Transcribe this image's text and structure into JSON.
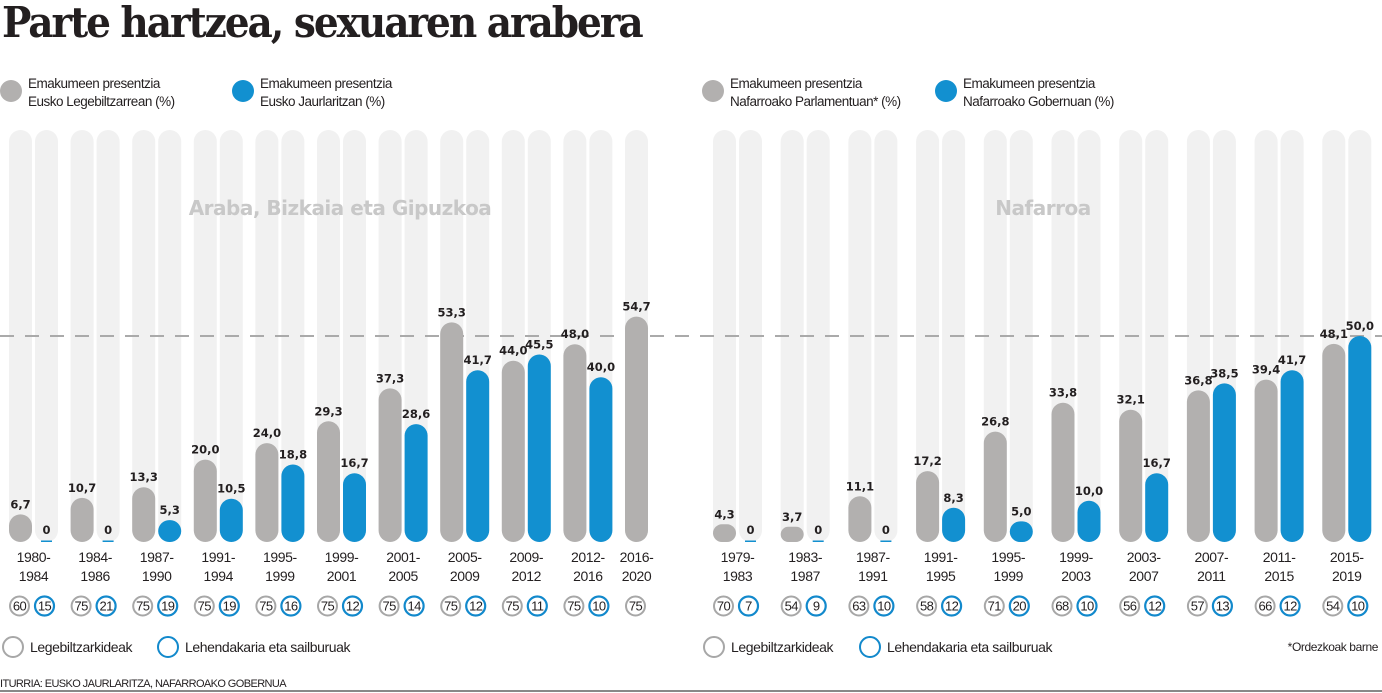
{
  "title": "Parte hartzea, sexuaren arabera",
  "legend": {
    "left": [
      {
        "color": "#b2b0af",
        "line1": "Emakumeen presentzia",
        "line2": "Eusko Legebiltzarrean (%)"
      },
      {
        "color": "#1290d0",
        "line1": "Emakumeen presentzia",
        "line2": "Eusko Jaurlaritzan (%)"
      }
    ],
    "right": [
      {
        "color": "#b2b0af",
        "line1": "Emakumeen presentzia",
        "line2": "Nafarroako Parlamentuan* (%)"
      },
      {
        "color": "#1290d0",
        "line1": "Emakumeen presentzia",
        "line2": "Nafarroako Gobernuan (%)"
      }
    ]
  },
  "bottom_legend": {
    "left": {
      "members": "Legebiltzarkideak",
      "government": "Lehendakaria eta sailburuak"
    },
    "right": {
      "members": "Legebiltzarkideak",
      "government": "Lehendakaria eta sailburuak"
    }
  },
  "note": "*Ordezkoak barne",
  "source": "ITURRIA: EUSKO JAURLARITZA, NAFARROAKO GOBERNUA",
  "colors": {
    "parliament": "#b2b0af",
    "government": "#1290d0",
    "track": "#f1f1f1",
    "ring_gray": "#a7a7a7",
    "ring_blue": "#1289cc",
    "reference_line": "#aaaaaa"
  },
  "chart_data": [
    {
      "type": "bar",
      "region": "Araba, Bizkaia eta Gipuzkoa",
      "title": "Emakumeen presentzia",
      "ylim": [
        0,
        100
      ],
      "reference_line": 50,
      "categories": [
        "1980-1984",
        "1984-1986",
        "1987-1990",
        "1991-1994",
        "1995-1999",
        "1999-2001",
        "2001-2005",
        "2005-2009",
        "2009-2012",
        "2012-2016",
        "2016-2020"
      ],
      "series": [
        {
          "name": "Eusko Legebiltzarrean (%)",
          "values": [
            6.7,
            10.7,
            13.3,
            20.0,
            24.0,
            29.3,
            37.3,
            53.3,
            44.0,
            48.0,
            54.7
          ],
          "labels": [
            "6,7",
            "10,7",
            "13,3",
            "20,0",
            "24,0",
            "29,3",
            "37,3",
            "53,3",
            "44,0",
            "48,0",
            "54,7"
          ]
        },
        {
          "name": "Eusko Jaurlaritzan (%)",
          "values": [
            0,
            0,
            5.3,
            10.5,
            18.8,
            16.7,
            28.6,
            41.7,
            45.5,
            40.0,
            null
          ],
          "labels": [
            "0",
            "0",
            "5,3",
            "10,5",
            "18,8",
            "16,7",
            "28,6",
            "41,7",
            "45,5",
            "40,0",
            null
          ]
        }
      ],
      "totals": {
        "members": [
          60,
          75,
          75,
          75,
          75,
          75,
          75,
          75,
          75,
          75,
          75
        ],
        "government": [
          15,
          21,
          19,
          19,
          16,
          12,
          14,
          12,
          11,
          10,
          null
        ]
      }
    },
    {
      "type": "bar",
      "region": "Nafarroa",
      "title": "Emakumeen presentzia",
      "ylim": [
        0,
        100
      ],
      "reference_line": 50,
      "categories": [
        "1979-1983",
        "1983-1987",
        "1987-1991",
        "1991-1995",
        "1995-1999",
        "1999-2003",
        "2003-2007",
        "2007-2011",
        "2011-2015",
        "2015-2019"
      ],
      "series": [
        {
          "name": "Nafarroako Parlamentuan* (%)",
          "values": [
            4.3,
            3.7,
            11.1,
            17.2,
            26.8,
            33.8,
            32.1,
            36.8,
            39.4,
            48.1
          ],
          "labels": [
            "4,3",
            "3,7",
            "11,1",
            "17,2",
            "26,8",
            "33,8",
            "32,1",
            "36,8",
            "39,4",
            "48,1"
          ]
        },
        {
          "name": "Nafarroako Gobernuan (%)",
          "values": [
            0,
            0,
            0,
            8.3,
            5.0,
            10.0,
            16.7,
            38.5,
            41.7,
            50.0
          ],
          "labels": [
            "0",
            "0",
            "0",
            "8,3",
            "5,0",
            "10,0",
            "16,7",
            "38,5",
            "41,7",
            "50,0"
          ]
        }
      ],
      "totals": {
        "members": [
          70,
          54,
          63,
          58,
          71,
          68,
          56,
          57,
          66,
          54
        ],
        "government": [
          7,
          9,
          10,
          12,
          20,
          10,
          12,
          13,
          12,
          10
        ]
      }
    }
  ]
}
